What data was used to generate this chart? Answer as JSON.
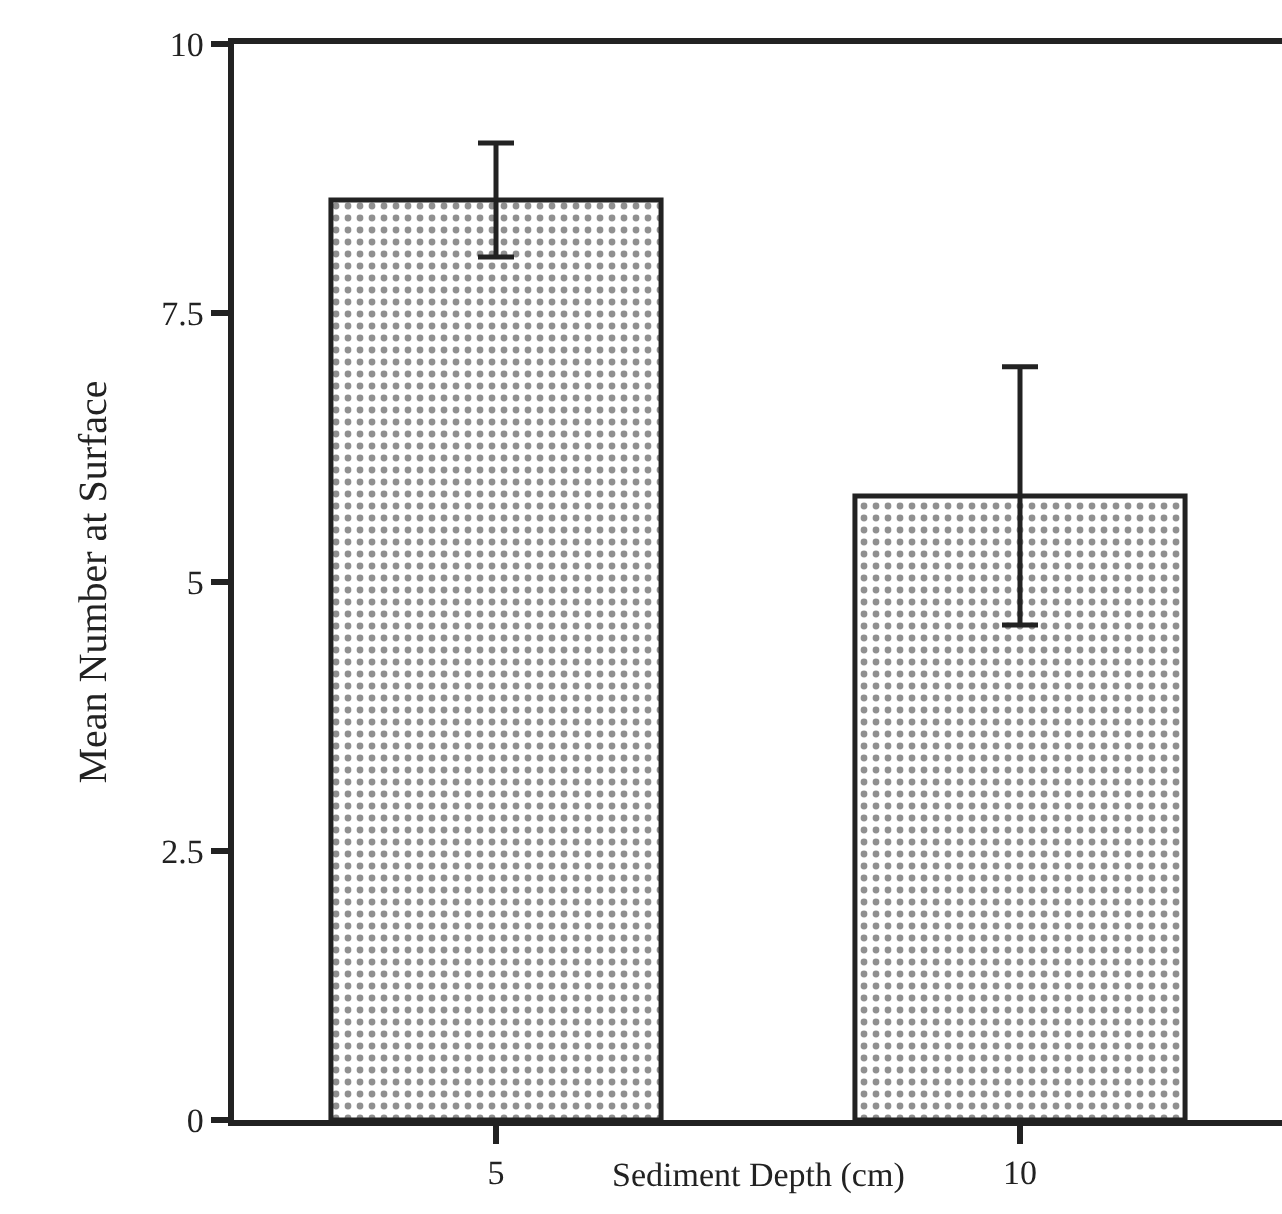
{
  "chart_data": {
    "type": "bar",
    "categories": [
      "5",
      "10"
    ],
    "values": [
      8.55,
      5.8
    ],
    "errors": [
      0.53,
      1.2
    ],
    "color": "#222222",
    "xlabel": "Sediment Depth (cm)",
    "ylabel": "Mean Number at Surface",
    "ylim": [
      0,
      10
    ],
    "yticks": [
      0,
      2.5,
      5,
      7.5,
      10
    ]
  }
}
